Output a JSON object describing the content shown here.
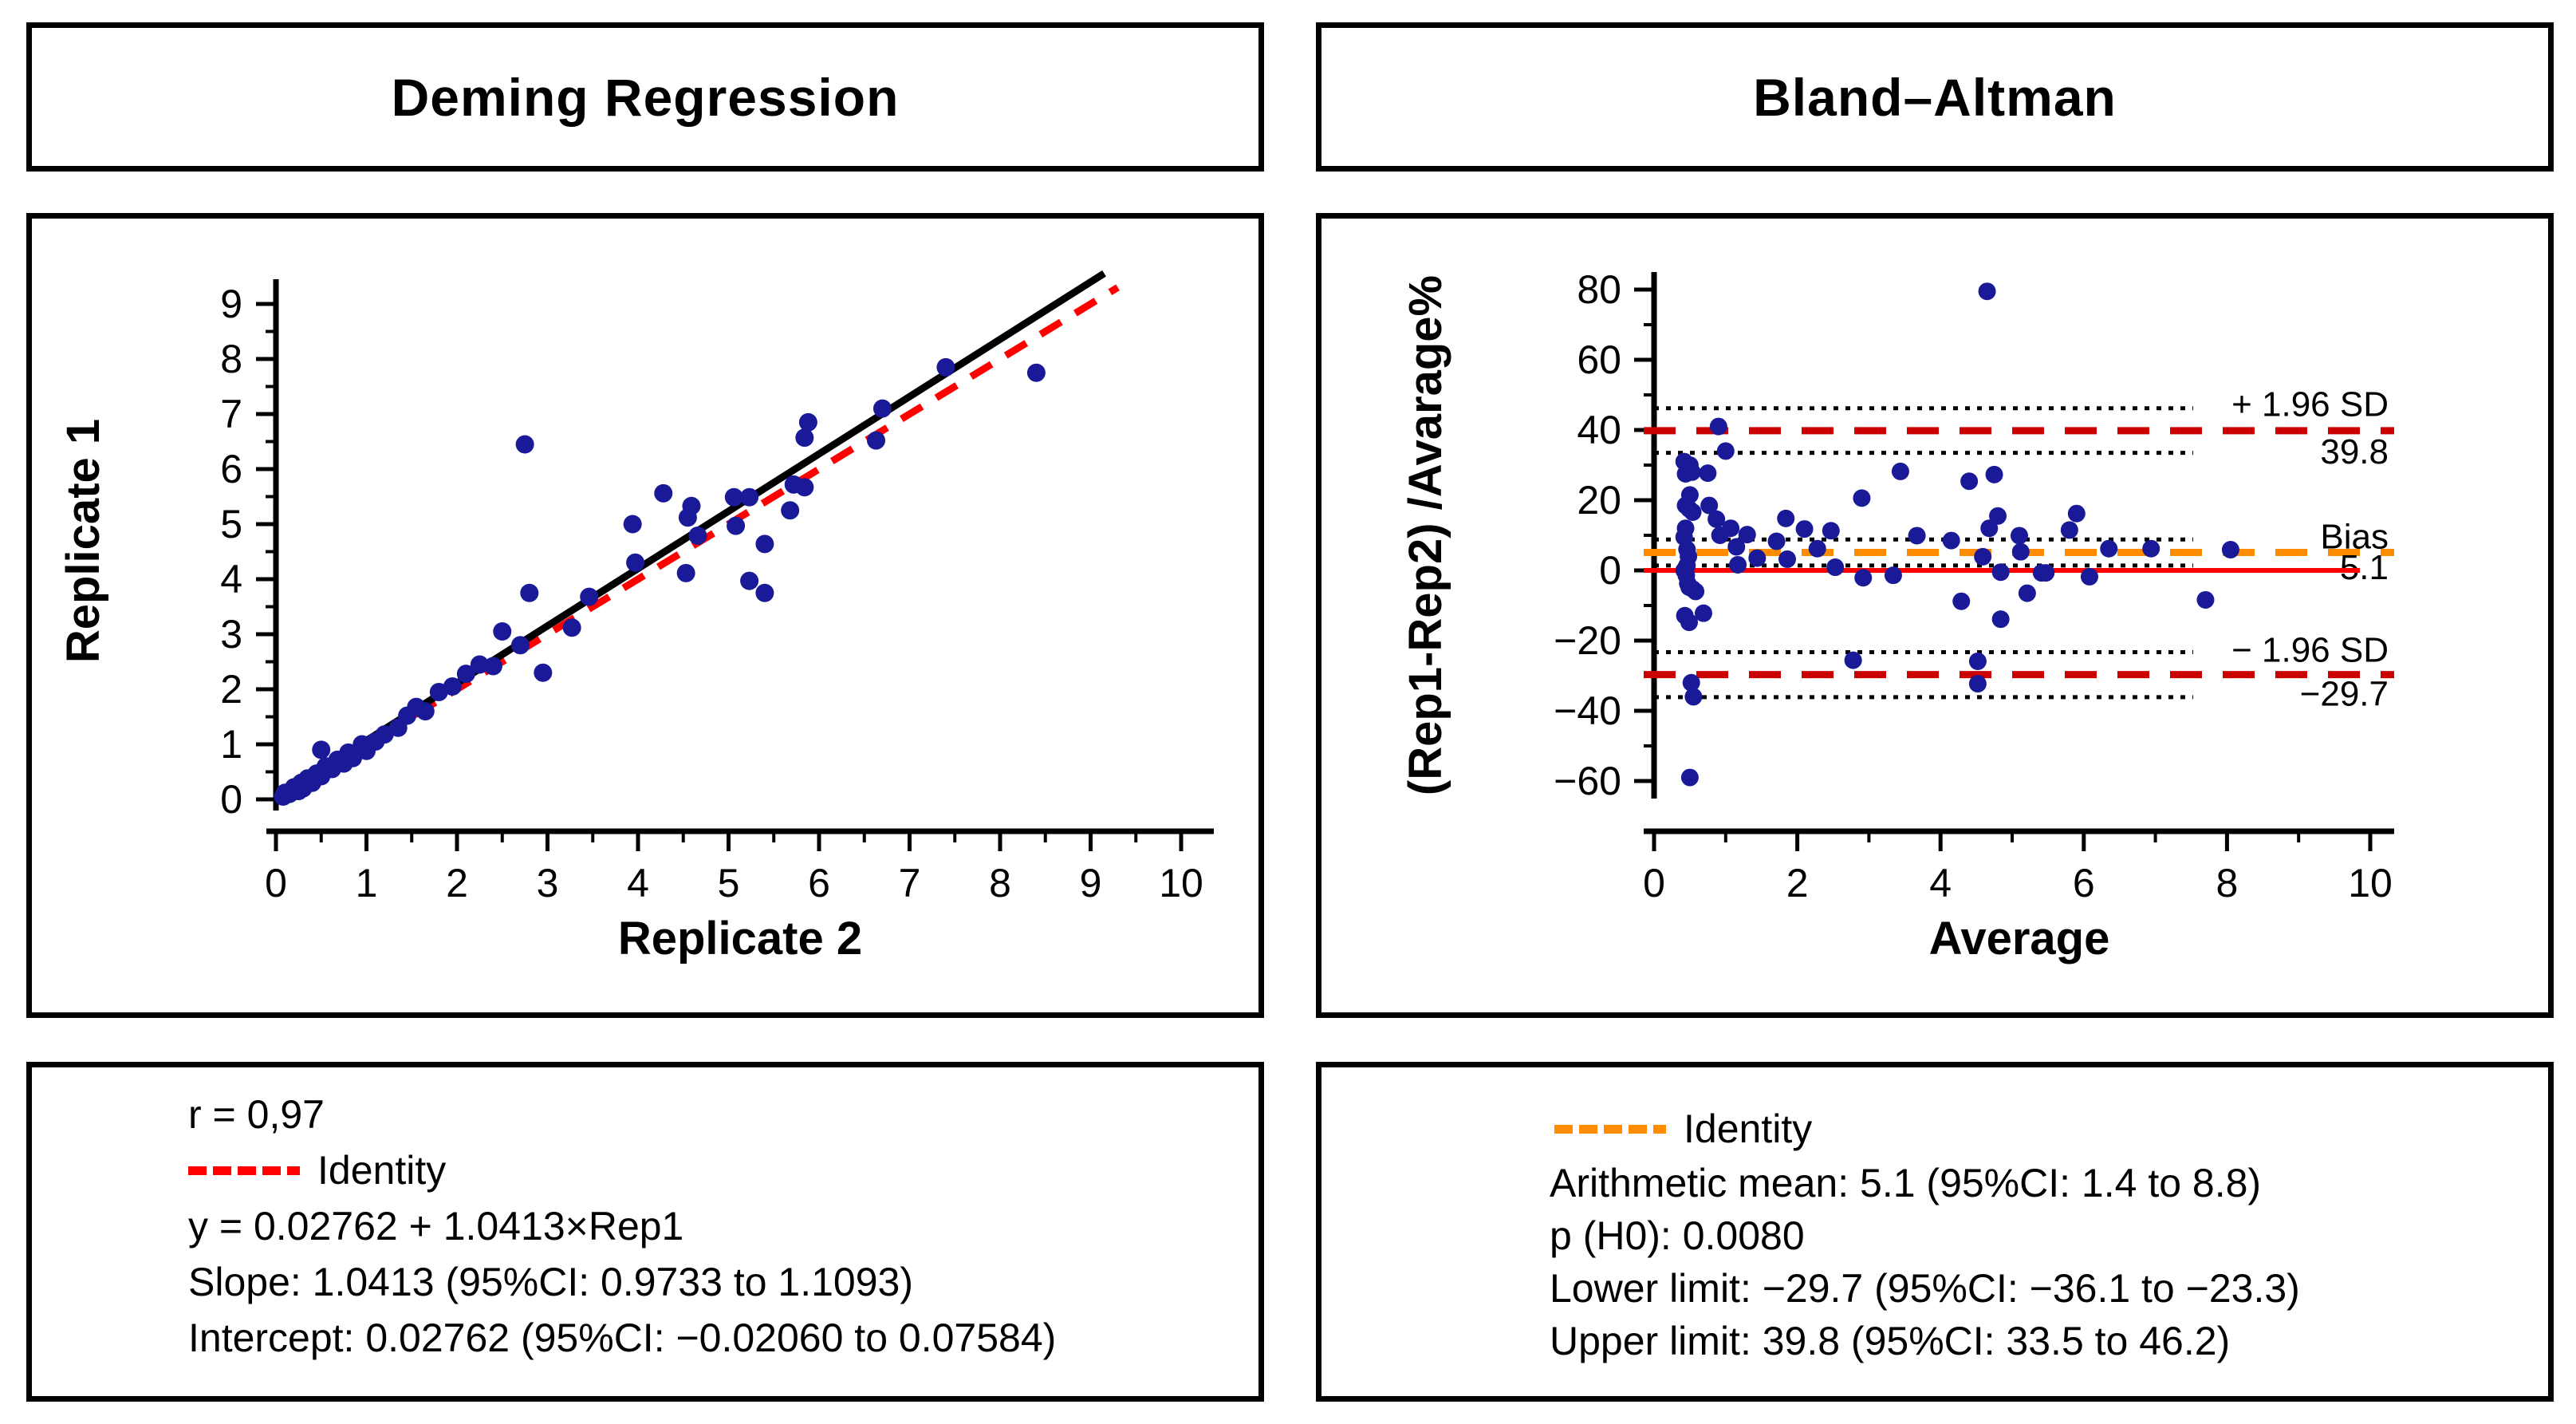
{
  "titles": {
    "left": "Deming Regression",
    "right": "Bland–Altman"
  },
  "deming_stats": {
    "r": "r = 0,97",
    "legend_label": "Identity",
    "equation": "y = 0.02762 + 1.0413×Rep1",
    "slope": "Slope: 1.0413 (95%CI: 0.9733 to 1.1093)",
    "intercept": "Intercept: 0.02762 (95%CI: −0.02060 to 0.07584)"
  },
  "ba_stats": {
    "legend_label": "Identity",
    "mean": "Arithmetic mean: 5.1 (95%CI: 1.4 to 8.8)",
    "p": "p (H0): 0.0080",
    "lower": "Lower limit: −29.7 (95%CI: −36.1 to −23.3)",
    "upper": "Upper limit: 39.8 (95%CI: 33.5 to 46.2)"
  },
  "colors": {
    "point": "#1a1a99",
    "identity_red": "#ff0000",
    "regression_black": "#000000",
    "bias_orange": "#ff8c00",
    "limit_dark_red": "#cc0000",
    "zero_red": "#ff0000",
    "dotted_black": "#000000"
  },
  "chart_data": [
    {
      "type": "scatter",
      "title": "Deming Regression",
      "xlabel": "Replicate 2",
      "ylabel": "Replicate 1",
      "xlim": [
        0,
        10.4
      ],
      "ylim": [
        -0.6,
        9.5
      ],
      "xticks": [
        0,
        1,
        2,
        3,
        4,
        5,
        6,
        7,
        8,
        9,
        10
      ],
      "yticks": [
        0,
        1,
        2,
        3,
        4,
        5,
        6,
        7,
        8,
        9
      ],
      "minor_tick_step": 0.5,
      "grid": false,
      "legend": [
        {
          "label": "Identity",
          "color": "#ff0000",
          "style": "dashed"
        }
      ],
      "lines": [
        {
          "name": "identity",
          "style": "dashed",
          "color": "#ff0000",
          "x1": 0,
          "y1": 0,
          "x2": 9.3,
          "y2": 9.3
        },
        {
          "name": "deming-fit",
          "style": "solid",
          "color": "#000000",
          "slope": 1.0413,
          "intercept": 0.02762,
          "x1": 0,
          "x2": 9.15
        }
      ],
      "points": [
        [
          0.08,
          0.05
        ],
        [
          0.1,
          0.12
        ],
        [
          0.15,
          0.1
        ],
        [
          0.2,
          0.22
        ],
        [
          0.25,
          0.15
        ],
        [
          0.28,
          0.3
        ],
        [
          0.3,
          0.2
        ],
        [
          0.35,
          0.38
        ],
        [
          0.4,
          0.3
        ],
        [
          0.45,
          0.47
        ],
        [
          0.5,
          0.42
        ],
        [
          0.5,
          0.9
        ],
        [
          0.55,
          0.6
        ],
        [
          0.62,
          0.55
        ],
        [
          0.68,
          0.72
        ],
        [
          0.75,
          0.65
        ],
        [
          0.8,
          0.85
        ],
        [
          0.85,
          0.75
        ],
        [
          0.95,
          1.0
        ],
        [
          1.0,
          0.88
        ],
        [
          1.1,
          1.05
        ],
        [
          1.2,
          1.18
        ],
        [
          1.35,
          1.3
        ],
        [
          1.45,
          1.52
        ],
        [
          1.55,
          1.68
        ],
        [
          1.65,
          1.6
        ],
        [
          1.8,
          1.95
        ],
        [
          1.95,
          2.05
        ],
        [
          2.1,
          2.28
        ],
        [
          2.25,
          2.45
        ],
        [
          2.4,
          2.42
        ],
        [
          2.5,
          3.05
        ],
        [
          2.7,
          2.8
        ],
        [
          2.75,
          6.45
        ],
        [
          2.8,
          3.75
        ],
        [
          2.95,
          2.3
        ],
        [
          3.27,
          3.12
        ],
        [
          3.46,
          3.68
        ],
        [
          3.94,
          5.0
        ],
        [
          3.97,
          4.3
        ],
        [
          4.28,
          5.56
        ],
        [
          4.53,
          4.11
        ],
        [
          4.55,
          5.12
        ],
        [
          4.59,
          5.33
        ],
        [
          4.66,
          4.79
        ],
        [
          5.06,
          5.49
        ],
        [
          5.08,
          4.97
        ],
        [
          5.23,
          5.49
        ],
        [
          5.23,
          3.97
        ],
        [
          5.4,
          4.64
        ],
        [
          5.4,
          3.75
        ],
        [
          5.68,
          5.25
        ],
        [
          5.72,
          5.72
        ],
        [
          5.84,
          5.67
        ],
        [
          5.84,
          6.57
        ],
        [
          5.88,
          6.85
        ],
        [
          6.63,
          6.52
        ],
        [
          6.7,
          7.1
        ],
        [
          7.4,
          7.85
        ],
        [
          8.4,
          7.75
        ]
      ]
    },
    {
      "type": "scatter",
      "title": "Bland–Altman",
      "xlabel": "Average",
      "ylabel": "(Rep1-Rep2) /Avarage%",
      "xlim": [
        0,
        10.3
      ],
      "ylim": [
        -65,
        85
      ],
      "xticks": [
        0,
        2,
        4,
        6,
        8,
        10
      ],
      "yticks": [
        -60,
        -40,
        -20,
        0,
        20,
        40,
        60,
        80
      ],
      "minor_x_ticks": [
        1,
        3,
        5,
        7,
        9
      ],
      "minor_y_step": 10,
      "grid": false,
      "legend": [
        {
          "label": "Identity",
          "color": "#ff8c00",
          "style": "dashed"
        }
      ],
      "hlines": [
        {
          "y": 46.2,
          "style": "dotted",
          "label": "+ 1.96 SD",
          "label_at": 44.0
        },
        {
          "y": 39.8,
          "style": "limit",
          "label": "39.8",
          "label_at": 30.5
        },
        {
          "y": 33.5,
          "style": "dotted"
        },
        {
          "y": 8.8,
          "style": "dotted",
          "label": "Bias",
          "label_at": 6.3
        },
        {
          "y": 5.1,
          "style": "bias",
          "label": "5.1",
          "label_at": -2.5
        },
        {
          "y": 1.4,
          "style": "dotted"
        },
        {
          "y": 0.0,
          "style": "zero"
        },
        {
          "y": -23.3,
          "style": "dotted",
          "label": "− 1.96 SD",
          "label_at": -26.0
        },
        {
          "y": -29.7,
          "style": "limit",
          "label": "−29.7",
          "label_at": -38.5
        },
        {
          "y": -36.1,
          "style": "dotted"
        }
      ],
      "points": [
        [
          0.42,
          31
        ],
        [
          0.5,
          30
        ],
        [
          0.44,
          27.5
        ],
        [
          0.53,
          28
        ],
        [
          0.75,
          27.7
        ],
        [
          0.9,
          41
        ],
        [
          1.0,
          34
        ],
        [
          0.5,
          21.5
        ],
        [
          0.44,
          18.5
        ],
        [
          0.49,
          17.5
        ],
        [
          0.54,
          16.6
        ],
        [
          0.77,
          18.5
        ],
        [
          0.87,
          14.6
        ],
        [
          0.92,
          10
        ],
        [
          1.07,
          12
        ],
        [
          1.15,
          6.7
        ],
        [
          1.17,
          1.6
        ],
        [
          1.3,
          10.2
        ],
        [
          1.44,
          3.5
        ],
        [
          0.44,
          12
        ],
        [
          0.42,
          9.5
        ],
        [
          0.46,
          6.0
        ],
        [
          0.48,
          4.0
        ],
        [
          0.46,
          1.4
        ],
        [
          0.42,
          0.0
        ],
        [
          0.45,
          -1.4
        ],
        [
          0.47,
          -3.7
        ],
        [
          0.49,
          -4.8
        ],
        [
          0.54,
          -5.3
        ],
        [
          0.58,
          -6.0
        ],
        [
          0.43,
          -12.9
        ],
        [
          0.49,
          -14.8
        ],
        [
          0.69,
          -12.2
        ],
        [
          0.52,
          -32
        ],
        [
          0.55,
          -36
        ],
        [
          0.5,
          -59
        ],
        [
          1.71,
          8.3
        ],
        [
          1.84,
          14.8
        ],
        [
          1.86,
          3.2
        ],
        [
          2.1,
          11.8
        ],
        [
          2.28,
          6.2
        ],
        [
          2.47,
          11.3
        ],
        [
          2.53,
          0.9
        ],
        [
          2.78,
          -25.6
        ],
        [
          2.9,
          20.6
        ],
        [
          2.92,
          -2.1
        ],
        [
          3.34,
          -1.4
        ],
        [
          3.44,
          28.2
        ],
        [
          3.67,
          9.9
        ],
        [
          4.15,
          8.5
        ],
        [
          4.29,
          -8.8
        ],
        [
          4.4,
          25.4
        ],
        [
          4.52,
          -25.9
        ],
        [
          4.52,
          -32.3
        ],
        [
          4.59,
          3.9
        ],
        [
          4.65,
          79.5
        ],
        [
          4.68,
          12
        ],
        [
          4.75,
          27.3
        ],
        [
          4.8,
          15.5
        ],
        [
          4.84,
          -0.5
        ],
        [
          4.84,
          -13.9
        ],
        [
          5.1,
          9.9
        ],
        [
          5.12,
          5.3
        ],
        [
          5.21,
          -6.5
        ],
        [
          5.41,
          -0.7
        ],
        [
          5.47,
          -0.7
        ],
        [
          5.8,
          11.5
        ],
        [
          5.9,
          16.2
        ],
        [
          6.08,
          -1.8
        ],
        [
          6.35,
          6.2
        ],
        [
          6.94,
          6.2
        ],
        [
          7.7,
          -8.4
        ],
        [
          8.05,
          5.9
        ]
      ]
    }
  ]
}
